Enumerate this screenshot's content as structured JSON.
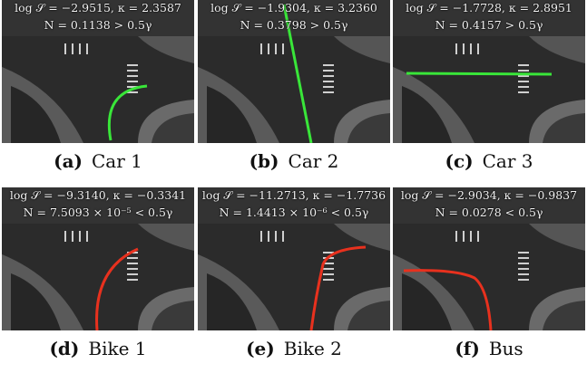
{
  "figure": {
    "panels": [
      {
        "tag": "(a)",
        "label": "Car 1",
        "line1": "log 𝒮 = −2.9515, κ = 2.3587",
        "line2": "N = 0.1138 > 0.5γ",
        "trajectory_color": "#39e639"
      },
      {
        "tag": "(b)",
        "label": "Car 2",
        "line1": "log 𝒮 = −1.9304, κ = 3.2360",
        "line2": "N = 0.3798 > 0.5γ",
        "trajectory_color": "#39e639"
      },
      {
        "tag": "(c)",
        "label": "Car 3",
        "line1": "log 𝒮 = −1.7728, κ = 2.8951",
        "line2": "N = 0.4157 > 0.5γ",
        "trajectory_color": "#39e639"
      },
      {
        "tag": "(d)",
        "label": "Bike 1",
        "line1": "log 𝒮 = −9.3140, κ = −0.3341",
        "line2": "N = 7.5093 × 10⁻⁵ < 0.5γ",
        "trajectory_color": "#e8311e"
      },
      {
        "tag": "(e)",
        "label": "Bike 2",
        "line1": "log 𝒮 = −11.2713, κ = −1.7736",
        "line2": "N = 1.4413 × 10⁻⁶ < 0.5γ",
        "trajectory_color": "#e8311e"
      },
      {
        "tag": "(f)",
        "label": "Bus",
        "line1": "log 𝒮 = −2.9034, κ = −0.9837",
        "line2": "N = 0.0278 < 0.5γ",
        "trajectory_color": "#e8311e"
      }
    ]
  }
}
